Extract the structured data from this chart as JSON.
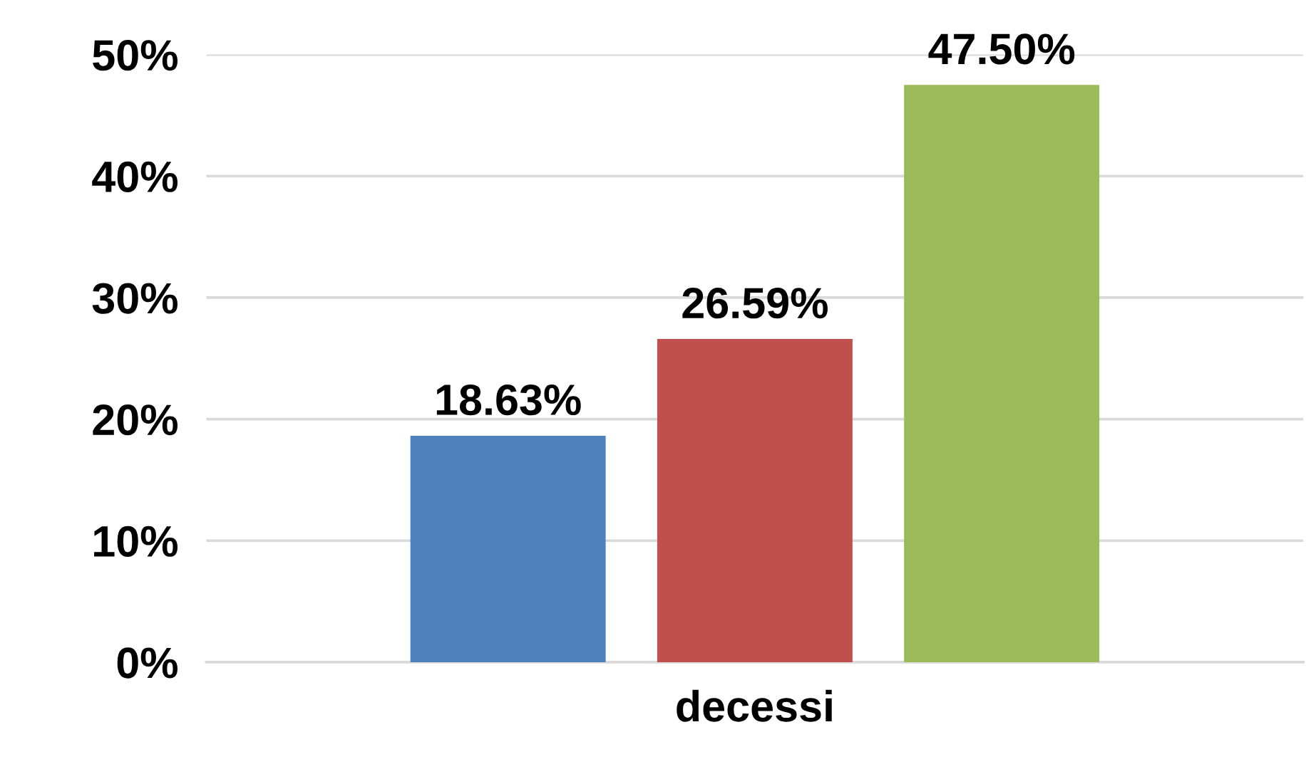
{
  "chart_data": {
    "type": "bar",
    "categories": [
      "decessi"
    ],
    "series": [
      {
        "color": "#4f81bd",
        "values": [
          18.63
        ],
        "value_labels": [
          "18.63%"
        ]
      },
      {
        "color": "#c0504d",
        "values": [
          26.59
        ],
        "value_labels": [
          "26.59%"
        ]
      },
      {
        "color": "#9bbb59",
        "values": [
          47.5
        ],
        "value_labels": [
          "47.50%"
        ]
      }
    ],
    "ylim": [
      0,
      50
    ],
    "yticks": [
      {
        "value": 0,
        "label": "0%"
      },
      {
        "value": 10,
        "label": "10%"
      },
      {
        "value": 20,
        "label": "20%"
      },
      {
        "value": 30,
        "label": "30%"
      },
      {
        "value": 40,
        "label": "40%"
      },
      {
        "value": 50,
        "label": "50%"
      }
    ],
    "grid": "y"
  }
}
